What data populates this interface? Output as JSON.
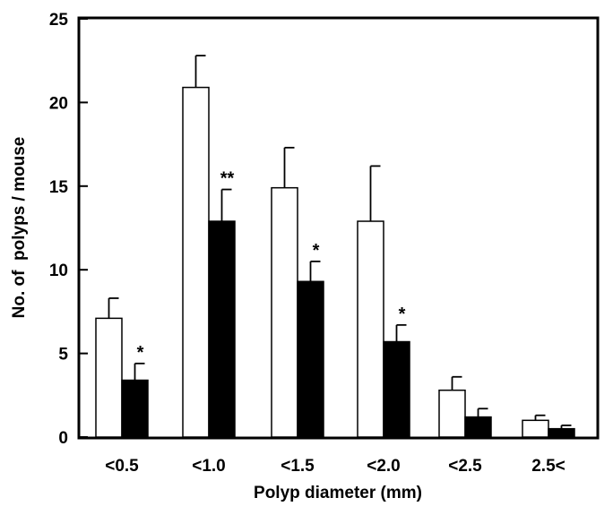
{
  "chart_data": {
    "type": "bar",
    "xlabel": "Polyp diameter (mm)",
    "ylabel": "No. of  polyps / mouse",
    "ylim": [
      0,
      25
    ],
    "yticks": [
      "0",
      "5",
      "10",
      "15",
      "20",
      "25"
    ],
    "categories": [
      "<0.5",
      "<1.0",
      "<1.5",
      "<2.0",
      "<2.5",
      "2.5<"
    ],
    "series": [
      {
        "fill": "#ffffff",
        "values": [
          7.1,
          20.9,
          14.9,
          12.9,
          2.8,
          1.0
        ],
        "errors": [
          1.2,
          1.9,
          2.4,
          3.3,
          0.8,
          0.3
        ]
      },
      {
        "fill": "#000000",
        "values": [
          3.4,
          12.9,
          9.3,
          5.7,
          1.2,
          0.5
        ],
        "errors": [
          1.0,
          1.9,
          1.2,
          1.0,
          0.5,
          0.2
        ]
      }
    ],
    "significance": [
      "*",
      "**",
      "*",
      "*",
      "",
      ""
    ],
    "grid": false,
    "legend": "none"
  }
}
